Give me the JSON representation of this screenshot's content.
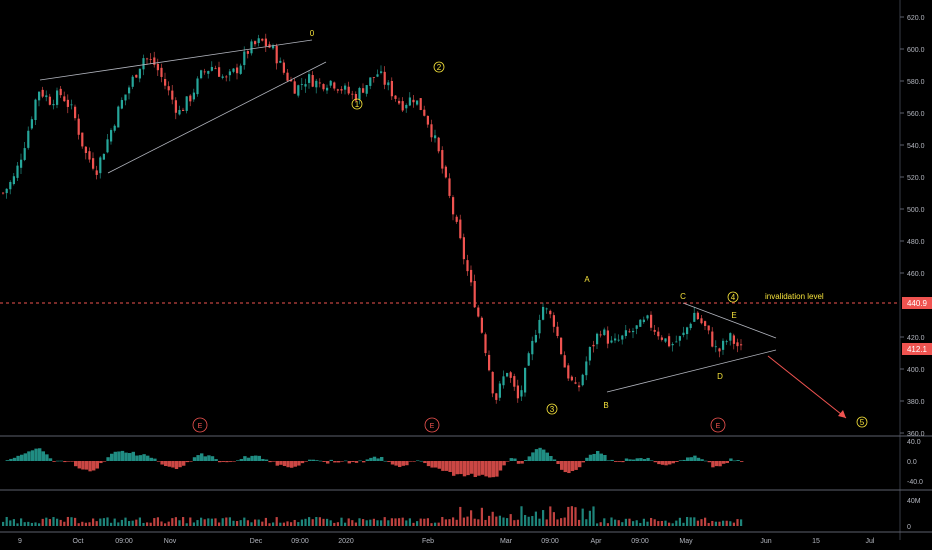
{
  "chart_data": {
    "type": "line",
    "title": "",
    "price_scale": {
      "ticks": [
        {
          "label": "620.0",
          "v": 620
        },
        {
          "label": "600.0",
          "v": 600
        },
        {
          "label": "580.0",
          "v": 580
        },
        {
          "label": "560.0",
          "v": 560
        },
        {
          "label": "540.0",
          "v": 540
        },
        {
          "label": "520.0",
          "v": 520
        },
        {
          "label": "500.0",
          "v": 500
        },
        {
          "label": "480.0",
          "v": 480
        },
        {
          "label": "460.0",
          "v": 460
        },
        {
          "label": "420.0",
          "v": 420
        },
        {
          "label": "400.0",
          "v": 400
        },
        {
          "label": "380.0",
          "v": 380
        },
        {
          "label": "360.0",
          "v": 360
        }
      ],
      "ylim": [
        360,
        625
      ]
    },
    "time_axis": [
      "9",
      "Oct",
      "09:00",
      "Nov",
      "Dec",
      "09:00",
      "2020",
      "Feb",
      "Mar",
      "09:00",
      "Apr",
      "09:00",
      "May",
      "Jun",
      "15",
      "Jul"
    ],
    "series": [
      {
        "values": [
          510,
          520,
          545,
          575,
          568,
          572,
          560,
          535,
          525,
          545,
          565,
          580,
          595,
          590,
          575,
          560,
          570,
          585,
          590,
          580,
          588,
          600,
          605,
          600,
          585,
          575,
          582,
          578,
          580,
          575,
          570,
          578,
          585,
          575,
          565,
          570,
          560,
          540,
          510,
          480,
          450,
          420,
          380,
          400,
          380,
          410,
          440,
          430,
          400,
          385,
          410,
          425,
          415,
          420,
          425,
          430,
          422,
          415,
          420,
          435,
          425,
          410,
          420,
          412
        ]
      }
    ],
    "current_price_label": "412.1",
    "level_label": "440.9",
    "level_value": 440.9,
    "annotations": {
      "wave_0": "0",
      "wave_1": "1",
      "wave_2": "2",
      "wave_3": "3",
      "wave_4": "4",
      "wave_5": "5",
      "A": "A",
      "B": "B",
      "C": "C",
      "D": "D",
      "E": "E",
      "invalidation": "invalidation level",
      "earnings": "E"
    },
    "oscillator": {
      "ticks": [
        {
          "label": "40.0",
          "v": 40
        },
        {
          "label": "0.0",
          "v": 0
        },
        {
          "label": "-40.0",
          "v": -40
        }
      ],
      "ylim": [
        -55,
        55
      ]
    },
    "volume": {
      "ticks": [
        {
          "label": "40M",
          "v": 40
        },
        {
          "label": "0",
          "v": 0
        }
      ],
      "ylim": [
        0,
        50
      ]
    },
    "colors": {
      "up": "#26a69a",
      "down": "#ef5350",
      "accent": "#f5e23b",
      "level": "#ef5350"
    }
  }
}
